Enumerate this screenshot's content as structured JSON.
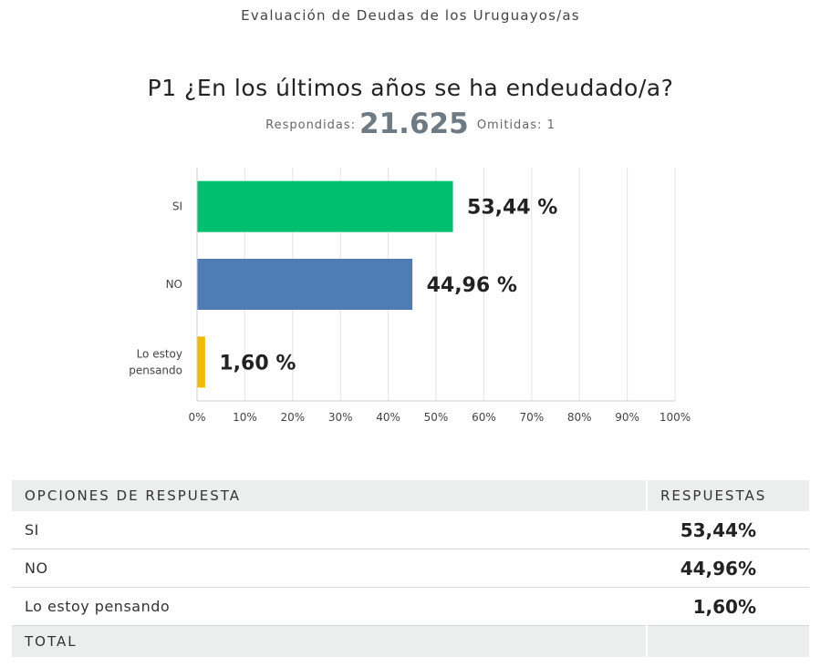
{
  "header": {
    "survey_title": "Evaluación de Deudas de los Uruguayos/as",
    "question": "P1 ¿En los últimos años se ha endeudado/a?",
    "answered_label": "Respondidas:",
    "answered_value": "21.625",
    "skipped_label": "Omitidas:",
    "skipped_value": "1"
  },
  "chart_data": {
    "type": "bar",
    "orientation": "horizontal",
    "categories": [
      "SI",
      "NO",
      "Lo estoy pensando"
    ],
    "category_lines": [
      [
        "SI"
      ],
      [
        "NO"
      ],
      [
        "Lo estoy",
        "pensando"
      ]
    ],
    "values": [
      53.44,
      44.96,
      1.6
    ],
    "value_labels": [
      "53,44 %",
      "44,96 %",
      "1,60 %"
    ],
    "colors": [
      "#00bf6f",
      "#507cb6",
      "#f1bc00"
    ],
    "xlim": [
      0,
      100
    ],
    "xticks": [
      0,
      10,
      20,
      30,
      40,
      50,
      60,
      70,
      80,
      90,
      100
    ],
    "xtick_labels": [
      "0%",
      "10%",
      "20%",
      "30%",
      "40%",
      "50%",
      "60%",
      "70%",
      "80%",
      "90%",
      "100%"
    ],
    "grid": true,
    "title": "",
    "xlabel": "",
    "ylabel": ""
  },
  "table": {
    "col_options": "OPCIONES DE RESPUESTA",
    "col_responses": "RESPUESTAS",
    "rows": [
      {
        "option": "SI",
        "response": "53,44%"
      },
      {
        "option": "NO",
        "response": "44,96%"
      },
      {
        "option": "Lo estoy pensando",
        "response": "1,60%"
      }
    ],
    "total_label": "TOTAL"
  }
}
